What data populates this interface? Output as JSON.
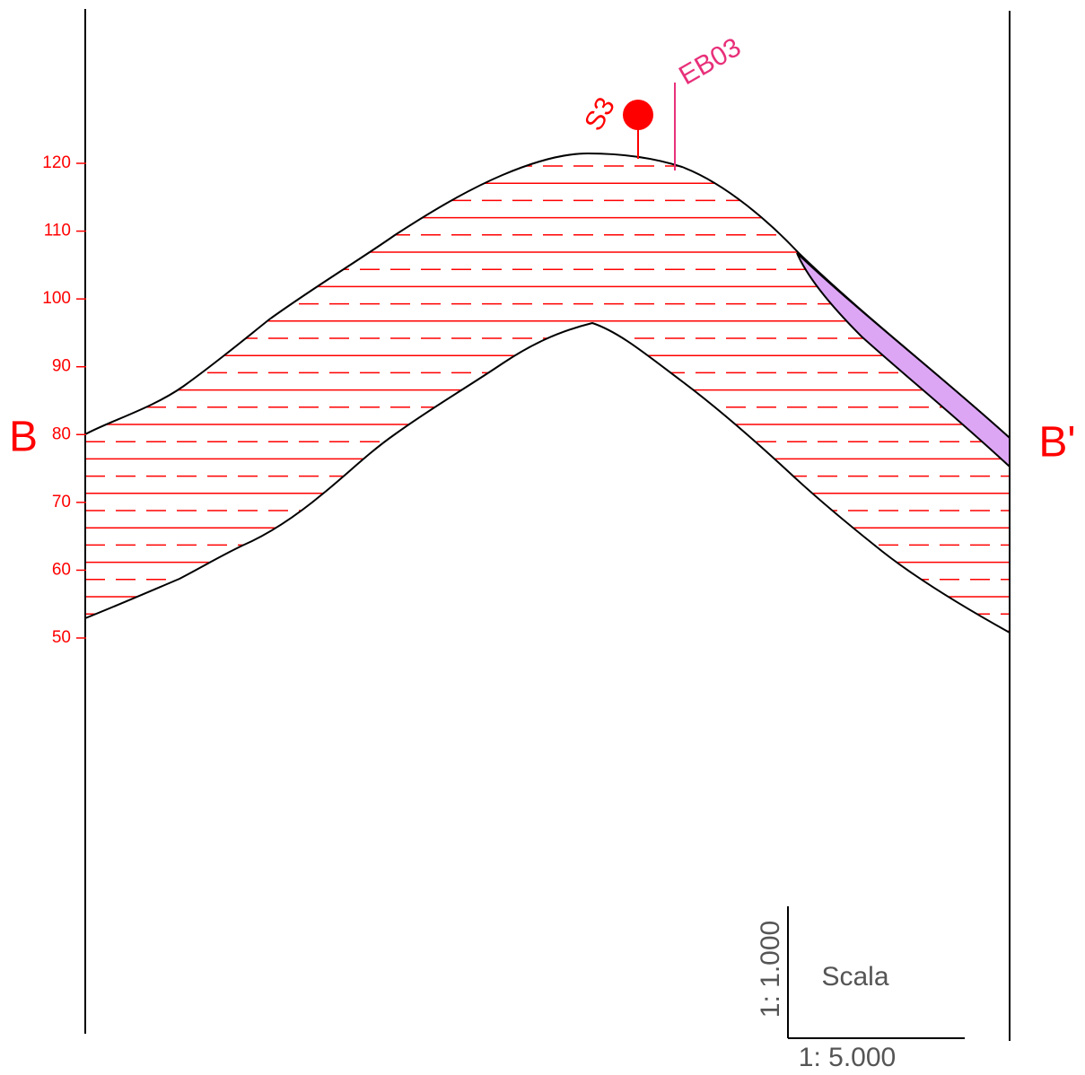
{
  "section": {
    "start_label": "B",
    "end_label": "B'"
  },
  "elevation_axis": {
    "ticks": [
      50,
      60,
      70,
      80,
      90,
      100,
      110,
      120
    ]
  },
  "boreholes": [
    {
      "label": "S3"
    },
    {
      "label": "EB03"
    }
  ],
  "scale": {
    "title": "Scala",
    "vertical": "1: 1.000",
    "horizontal": "1: 5.000"
  }
}
